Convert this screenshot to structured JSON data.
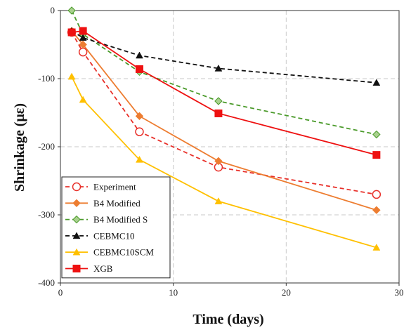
{
  "chart_data": {
    "type": "line",
    "xlabel": "Time (days)",
    "ylabel": "Shrinkage (με)",
    "xlim": [
      0,
      30
    ],
    "ylim": [
      -400,
      0
    ],
    "xticks": [
      0,
      10,
      20,
      30
    ],
    "yticks": [
      0,
      -100,
      -200,
      -300,
      -400
    ],
    "grid": true,
    "legend_position": "bottom-left",
    "series": [
      {
        "name": "Experiment",
        "color": "#e8302a",
        "dash": "dashed",
        "marker": "circle-open",
        "x": [
          1,
          2,
          7,
          14,
          28
        ],
        "y": [
          -32,
          -61,
          -178,
          -230,
          -270
        ]
      },
      {
        "name": "B4 Modified",
        "color": "#ed7d31",
        "dash": "solid",
        "marker": "diamond",
        "x": [
          1,
          2,
          7,
          14,
          28
        ],
        "y": [
          -30,
          -50,
          -155,
          -221,
          -293
        ]
      },
      {
        "name": "B4 Modified S",
        "color": "#4a9a2a",
        "fill": "#a9d18e",
        "dash": "dashed",
        "marker": "diamond",
        "x": [
          1,
          2,
          7,
          14,
          28
        ],
        "y": [
          0,
          -35,
          -90,
          -133,
          -182
        ]
      },
      {
        "name": "CEBMC10",
        "color": "#111111",
        "dash": "dashed",
        "marker": "triangle",
        "x": [
          1,
          2,
          7,
          14,
          28
        ],
        "y": [
          -30,
          -40,
          -66,
          -85,
          -106
        ]
      },
      {
        "name": "CEBMC10SCM",
        "color": "#ffc000",
        "dash": "solid",
        "marker": "triangle",
        "x": [
          1,
          2,
          7,
          14,
          28
        ],
        "y": [
          -97,
          -131,
          -219,
          -280,
          -348
        ]
      },
      {
        "name": "XGB",
        "color": "#ee1111",
        "dash": "solid",
        "marker": "square",
        "x": [
          1,
          2,
          7,
          14,
          28
        ],
        "y": [
          -32,
          -30,
          -86,
          -151,
          -212
        ]
      }
    ]
  }
}
